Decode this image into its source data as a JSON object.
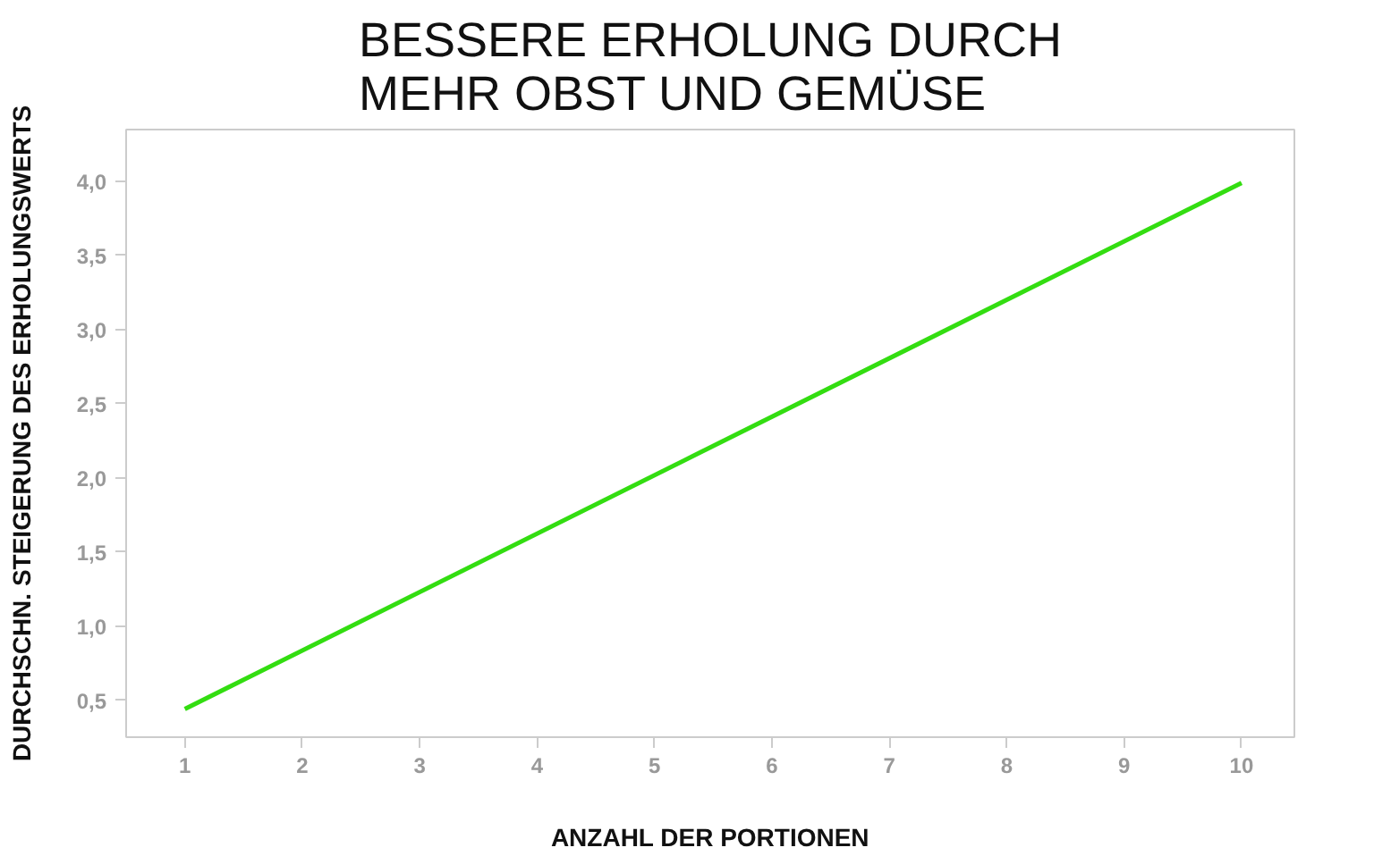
{
  "chart_data": {
    "type": "line",
    "title": "BESSERE ERHOLUNG DURCH\nMEHR OBST UND GEMÜSE",
    "xlabel": "ANZAHL DER PORTIONEN",
    "ylabel": "DURCHSCHN. STEIGERUNG DES ERHOLUNGSWERTS",
    "x": [
      1,
      10
    ],
    "series": [
      {
        "color": "#33dd11",
        "values": [
          0.44,
          3.99
        ]
      }
    ],
    "xlim": [
      0.5,
      10.45
    ],
    "ylim": [
      0.25,
      4.35
    ],
    "xticks": [
      1,
      2,
      3,
      4,
      5,
      6,
      7,
      8,
      9,
      10
    ],
    "yticks": [
      {
        "value": 0.5,
        "label": "0,5"
      },
      {
        "value": 1.0,
        "label": "1,0"
      },
      {
        "value": 1.5,
        "label": "1,5"
      },
      {
        "value": 2.0,
        "label": "2,0"
      },
      {
        "value": 2.5,
        "label": "2,5"
      },
      {
        "value": 3.0,
        "label": "3,0"
      },
      {
        "value": 3.5,
        "label": "3,5"
      },
      {
        "value": 4.0,
        "label": "4,0"
      }
    ],
    "grid": false,
    "marker": "none",
    "line_style": "solid"
  }
}
